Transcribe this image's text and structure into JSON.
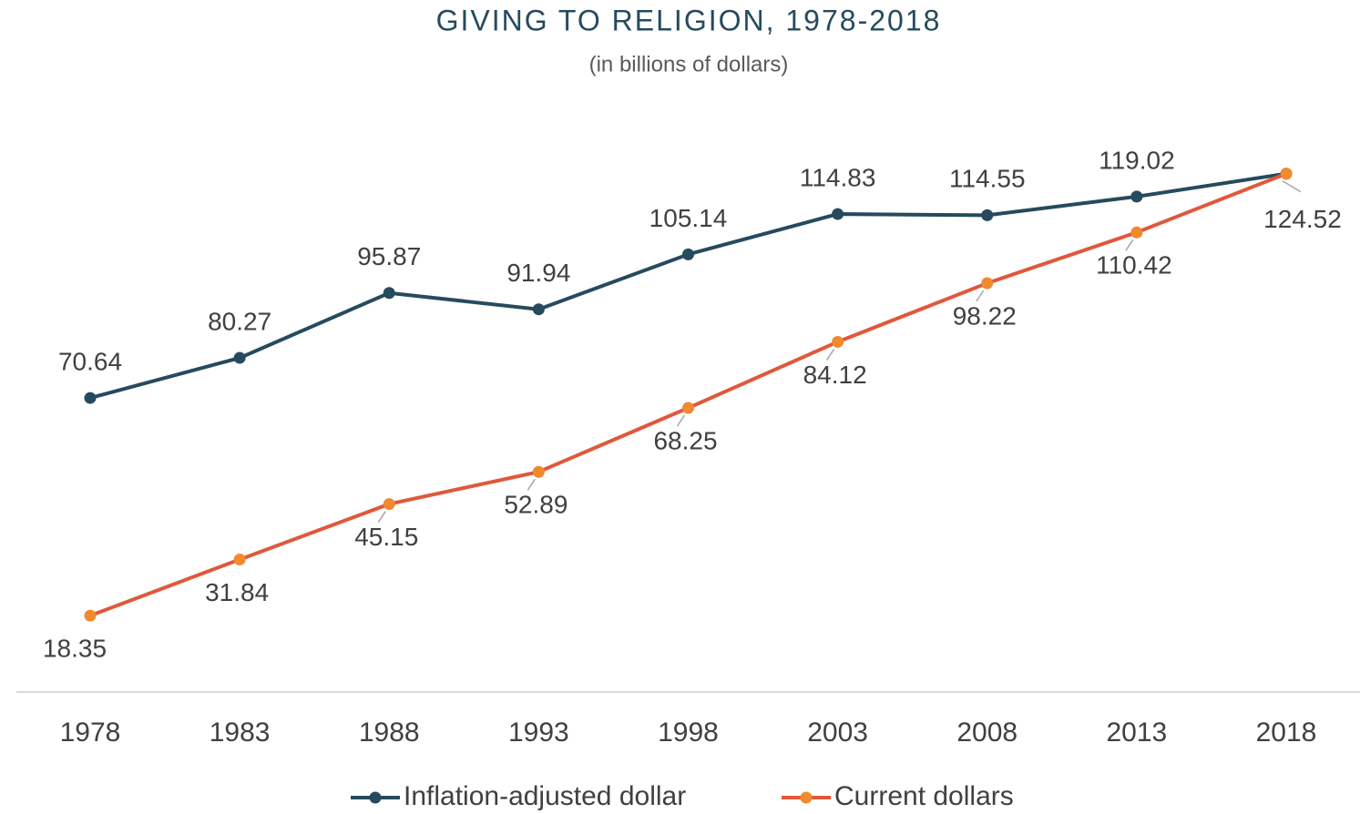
{
  "chart_data": {
    "type": "line",
    "title": "GIVING TO RELIGION, 1978-2018",
    "subtitle": "(in billions of dollars)",
    "categories": [
      "1978",
      "1983",
      "1988",
      "1993",
      "1998",
      "2003",
      "2008",
      "2013",
      "2018"
    ],
    "series": [
      {
        "name": "Inflation-adjusted dollar",
        "color": "#264a5e",
        "marker_color": "#264a5e",
        "values": [
          70.64,
          80.27,
          95.87,
          91.94,
          105.14,
          114.83,
          114.55,
          119.02,
          124.52
        ]
      },
      {
        "name": "Current dollars",
        "color": "#e0583b",
        "marker_color": "#f08a2e",
        "values": [
          18.35,
          31.84,
          45.15,
          52.89,
          68.25,
          84.12,
          98.22,
          110.42,
          124.52
        ]
      }
    ],
    "ylim": [
      0,
      140
    ],
    "legend": "bottom"
  }
}
